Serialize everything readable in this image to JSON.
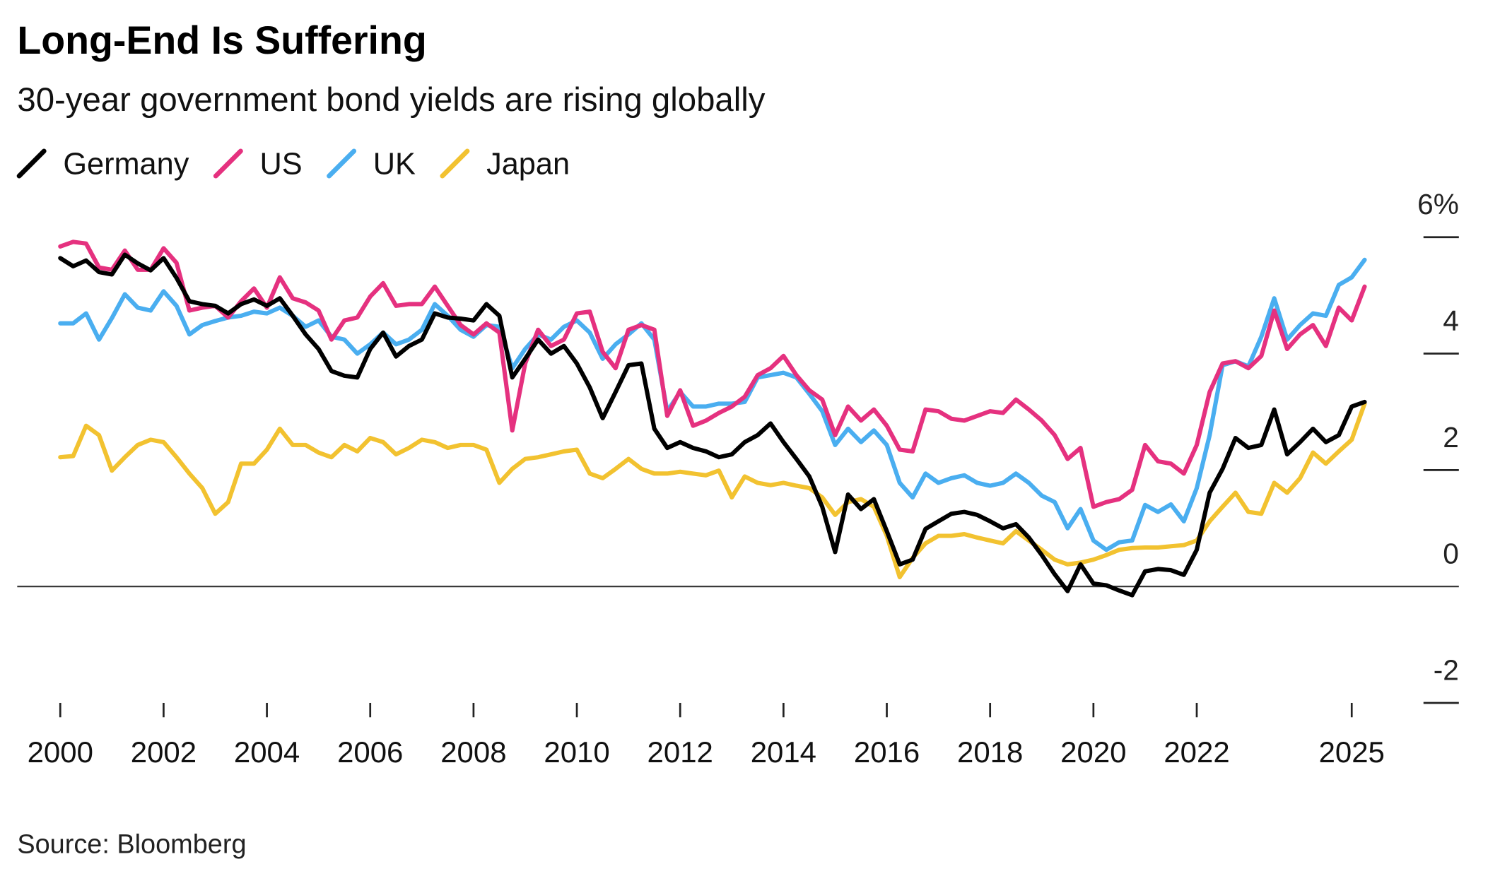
{
  "chart_data": {
    "type": "line",
    "title": "Long-End Is Suffering",
    "subtitle": "30-year government bond yields are rising globally",
    "source": "Source: Bloomberg",
    "x": [
      2000,
      2000.25,
      2000.5,
      2000.75,
      2001,
      2001.25,
      2001.5,
      2001.75,
      2002,
      2002.25,
      2002.5,
      2002.75,
      2003,
      2003.25,
      2003.5,
      2003.75,
      2004,
      2004.25,
      2004.5,
      2004.75,
      2005,
      2005.25,
      2005.5,
      2005.75,
      2006,
      2006.25,
      2006.5,
      2006.75,
      2007,
      2007.25,
      2007.5,
      2007.75,
      2008,
      2008.25,
      2008.5,
      2008.75,
      2009,
      2009.25,
      2009.5,
      2009.75,
      2010,
      2010.25,
      2010.5,
      2010.75,
      2011,
      2011.25,
      2011.5,
      2011.75,
      2012,
      2012.25,
      2012.5,
      2012.75,
      2013,
      2013.25,
      2013.5,
      2013.75,
      2014,
      2014.25,
      2014.5,
      2014.75,
      2015,
      2015.25,
      2015.5,
      2015.75,
      2016,
      2016.25,
      2016.5,
      2016.75,
      2017,
      2017.25,
      2017.5,
      2017.75,
      2018,
      2018.25,
      2018.5,
      2018.75,
      2019,
      2019.25,
      2019.5,
      2019.75,
      2020,
      2020.25,
      2020.5,
      2020.75,
      2021,
      2021.25,
      2021.5,
      2021.75,
      2022,
      2022.25,
      2022.5,
      2022.75,
      2023,
      2023.25,
      2023.5,
      2023.75,
      2024,
      2024.25,
      2024.5,
      2024.75,
      2025,
      2025.25
    ],
    "series": [
      {
        "name": "Germany",
        "color": "#000000",
        "values": [
          5.64,
          5.5,
          5.6,
          5.4,
          5.36,
          5.7,
          5.55,
          5.43,
          5.64,
          5.3,
          4.9,
          4.85,
          4.82,
          4.69,
          4.85,
          4.93,
          4.82,
          4.95,
          4.65,
          4.33,
          4.08,
          3.7,
          3.62,
          3.59,
          4.08,
          4.36,
          3.95,
          4.13,
          4.24,
          4.69,
          4.62,
          4.6,
          4.57,
          4.85,
          4.65,
          3.59,
          3.91,
          4.24,
          4.0,
          4.13,
          3.83,
          3.42,
          2.89,
          3.34,
          3.8,
          3.83,
          2.71,
          2.38,
          2.48,
          2.38,
          2.32,
          2.22,
          2.27,
          2.48,
          2.6,
          2.8,
          2.48,
          2.19,
          1.89,
          1.37,
          0.59,
          1.58,
          1.33,
          1.5,
          0.95,
          0.38,
          0.46,
          0.99,
          1.12,
          1.25,
          1.28,
          1.23,
          1.12,
          1.0,
          1.07,
          0.84,
          0.54,
          0.21,
          -0.08,
          0.38,
          0.05,
          0.02,
          -0.07,
          -0.15,
          0.26,
          0.3,
          0.28,
          0.2,
          0.63,
          1.61,
          2.02,
          2.55,
          2.38,
          2.43,
          3.04,
          2.27,
          2.48,
          2.71,
          2.48,
          2.6,
          3.09,
          3.17
        ]
      },
      {
        "name": "US",
        "color": "#e5317f",
        "values": [
          5.84,
          5.92,
          5.89,
          5.48,
          5.44,
          5.77,
          5.44,
          5.44,
          5.81,
          5.56,
          4.74,
          4.79,
          4.82,
          4.62,
          4.9,
          5.12,
          4.79,
          5.31,
          4.95,
          4.88,
          4.74,
          4.24,
          4.57,
          4.62,
          4.98,
          5.21,
          4.82,
          4.85,
          4.85,
          5.15,
          4.82,
          4.49,
          4.33,
          4.52,
          4.36,
          2.68,
          3.83,
          4.41,
          4.13,
          4.24,
          4.69,
          4.72,
          4.03,
          3.75,
          4.41,
          4.49,
          4.41,
          2.93,
          3.37,
          2.76,
          2.85,
          2.98,
          3.09,
          3.26,
          3.63,
          3.75,
          3.96,
          3.63,
          3.37,
          3.21,
          2.6,
          3.09,
          2.85,
          3.04,
          2.76,
          2.35,
          2.32,
          3.04,
          3.01,
          2.88,
          2.85,
          2.93,
          3.01,
          2.98,
          3.21,
          3.04,
          2.85,
          2.6,
          2.19,
          2.38,
          1.37,
          1.45,
          1.5,
          1.66,
          2.43,
          2.15,
          2.11,
          1.94,
          2.43,
          3.34,
          3.83,
          3.87,
          3.75,
          3.96,
          4.74,
          4.08,
          4.33,
          4.49,
          4.13,
          4.79,
          4.57,
          5.15
        ]
      },
      {
        "name": "UK",
        "color": "#4aaef0",
        "values": [
          4.52,
          4.52,
          4.69,
          4.24,
          4.61,
          5.02,
          4.79,
          4.74,
          5.07,
          4.82,
          4.33,
          4.49,
          4.56,
          4.62,
          4.65,
          4.72,
          4.69,
          4.79,
          4.65,
          4.46,
          4.57,
          4.29,
          4.24,
          4.0,
          4.16,
          4.36,
          4.16,
          4.24,
          4.41,
          4.85,
          4.65,
          4.41,
          4.29,
          4.49,
          4.46,
          3.75,
          4.08,
          4.33,
          4.24,
          4.46,
          4.57,
          4.36,
          3.91,
          4.16,
          4.33,
          4.52,
          4.24,
          3.01,
          3.34,
          3.09,
          3.09,
          3.14,
          3.14,
          3.17,
          3.59,
          3.63,
          3.67,
          3.59,
          3.31,
          3.01,
          2.43,
          2.71,
          2.48,
          2.68,
          2.43,
          1.78,
          1.53,
          1.94,
          1.78,
          1.86,
          1.91,
          1.78,
          1.73,
          1.78,
          1.94,
          1.78,
          1.56,
          1.45,
          1.0,
          1.33,
          0.79,
          0.63,
          0.76,
          0.79,
          1.4,
          1.28,
          1.41,
          1.12,
          1.69,
          2.6,
          3.8,
          3.87,
          3.78,
          4.29,
          4.95,
          4.24,
          4.49,
          4.69,
          4.65,
          5.18,
          5.31,
          5.61
        ]
      },
      {
        "name": "Japan",
        "color": "#f2c230",
        "values": [
          2.22,
          2.24,
          2.76,
          2.6,
          1.99,
          2.22,
          2.43,
          2.52,
          2.48,
          2.22,
          1.94,
          1.69,
          1.25,
          1.45,
          2.11,
          2.11,
          2.35,
          2.71,
          2.43,
          2.43,
          2.3,
          2.22,
          2.43,
          2.32,
          2.55,
          2.48,
          2.27,
          2.38,
          2.52,
          2.48,
          2.38,
          2.43,
          2.43,
          2.35,
          1.78,
          2.02,
          2.19,
          2.22,
          2.27,
          2.32,
          2.35,
          1.94,
          1.86,
          2.02,
          2.19,
          2.02,
          1.94,
          1.94,
          1.97,
          1.94,
          1.91,
          1.99,
          1.53,
          1.89,
          1.78,
          1.74,
          1.78,
          1.73,
          1.69,
          1.53,
          1.23,
          1.45,
          1.5,
          1.37,
          0.87,
          0.16,
          0.49,
          0.74,
          0.87,
          0.87,
          0.9,
          0.84,
          0.79,
          0.74,
          0.95,
          0.79,
          0.63,
          0.46,
          0.38,
          0.41,
          0.46,
          0.54,
          0.63,
          0.66,
          0.67,
          0.67,
          0.69,
          0.71,
          0.79,
          1.12,
          1.37,
          1.61,
          1.28,
          1.25,
          1.78,
          1.61,
          1.86,
          2.3,
          2.11,
          2.32,
          2.52,
          3.14
        ]
      }
    ],
    "xlim": [
      2000,
      2025
    ],
    "xticks": [
      2000,
      2002,
      2004,
      2006,
      2008,
      2010,
      2012,
      2014,
      2016,
      2018,
      2020,
      2022,
      2025
    ],
    "ylim": [
      -2,
      6
    ],
    "yticks": [
      -2,
      0,
      2,
      4,
      {
        "value": 6,
        "label": "6%"
      }
    ],
    "legend": "top-left"
  }
}
